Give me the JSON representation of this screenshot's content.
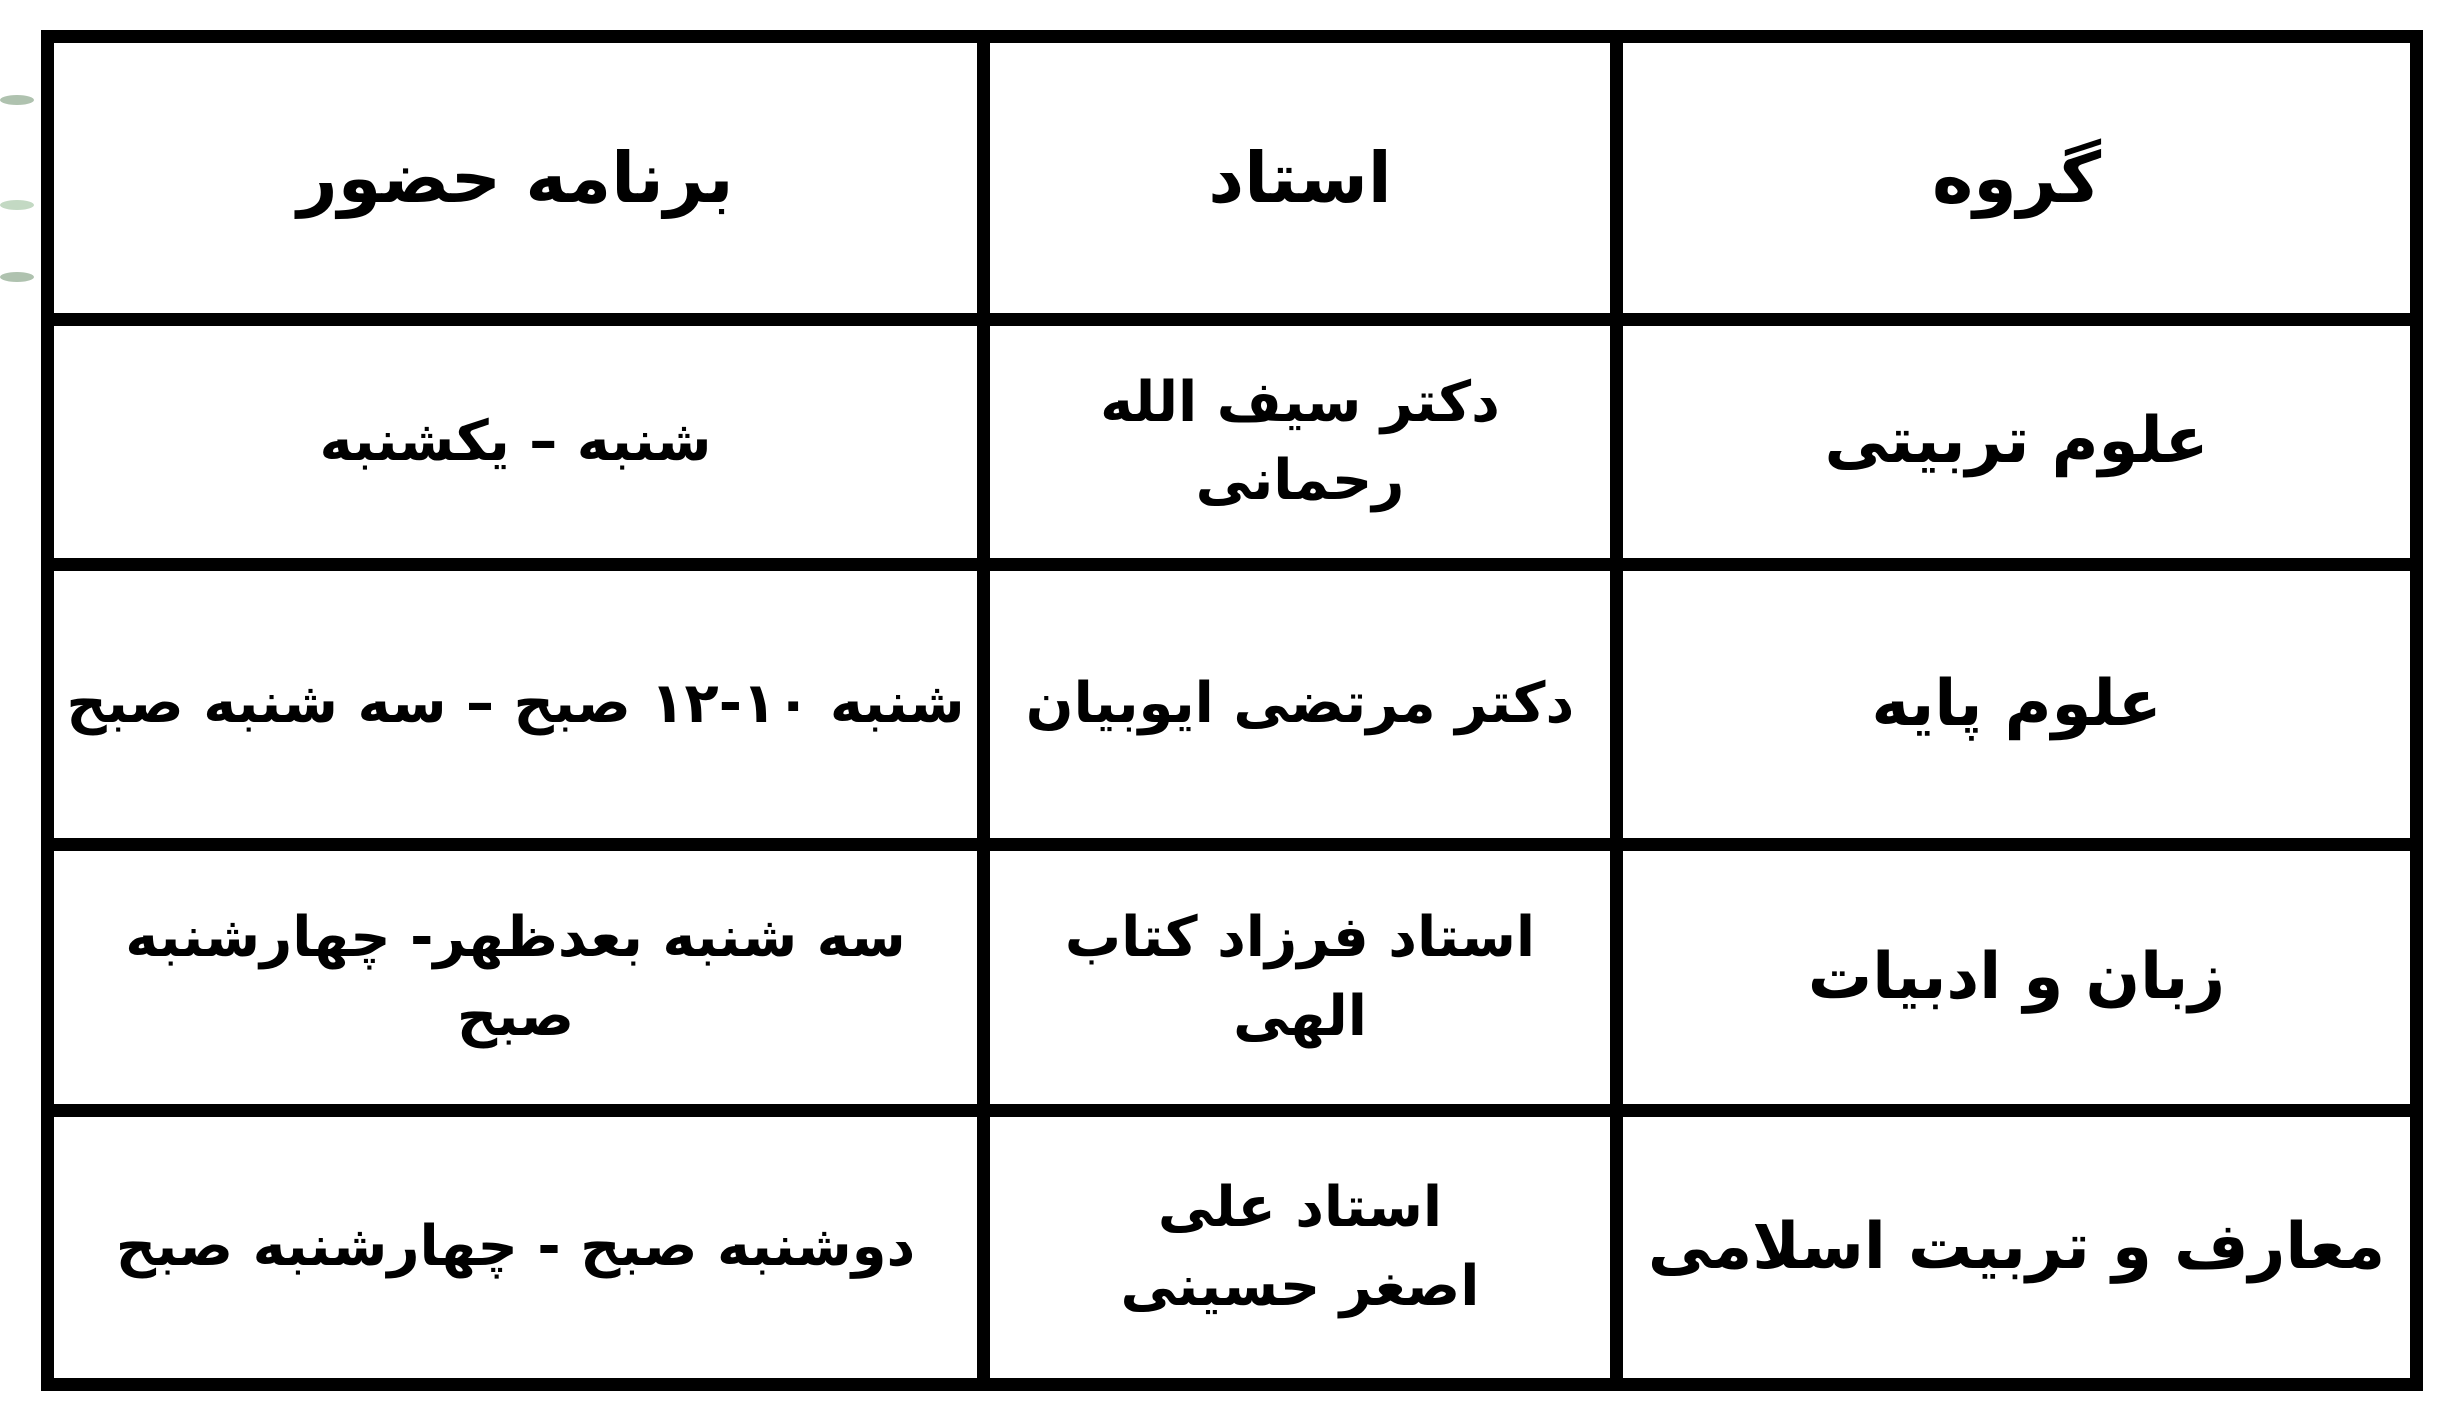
{
  "table": {
    "headers": [
      "گروه",
      "استاد",
      "برنامه حضور"
    ],
    "rows": [
      {
        "group": "علوم تربیتی",
        "teacher": "دکتر سیف الله رحمانی",
        "schedule": "شنبه – یکشنبه"
      },
      {
        "group": "علوم پایه",
        "teacher": "دکتر مرتضی ایوبیان",
        "schedule": "شنبه ۱۰-۱۲ صبح – سه شنبه صبح"
      },
      {
        "group": "زبان و ادبیات",
        "teacher": "استاد  فرزاد کتاب الهی",
        "schedule": "سه شنبه بعدظهر- چهارشنبه صبح"
      },
      {
        "group": "معارف و تربیت اسلامی",
        "teacher": "استاد علی اصغر حسینی",
        "schedule": "دوشنبه صبح - چهارشنبه صبح"
      }
    ]
  }
}
